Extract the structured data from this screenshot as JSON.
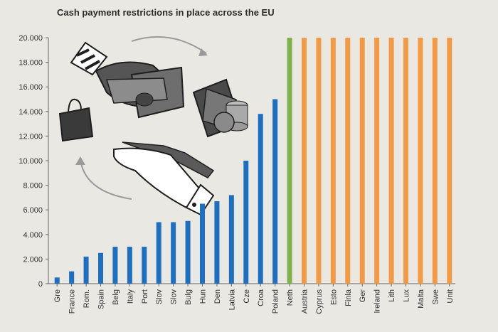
{
  "chart_data": {
    "type": "bar",
    "title": "Cash payment restrictions in place across the EU",
    "xlabel": "",
    "ylabel": "",
    "ylim": [
      0,
      20000
    ],
    "yticks": [
      "0",
      "2.000",
      "4.000",
      "6.000",
      "8.000",
      "10.000",
      "12.000",
      "14.000",
      "16.000",
      "18.000",
      "20.000"
    ],
    "ytick_values": [
      0,
      2000,
      4000,
      6000,
      8000,
      10000,
      12000,
      14000,
      16000,
      18000,
      20000
    ],
    "grid": false,
    "legend": "none",
    "categories": [
      "Gre",
      "France",
      "Rom.",
      "Spain",
      "Belg",
      "Italy",
      "Port",
      "Slov",
      "Slov",
      "Bulg",
      "Hun",
      "Den",
      "Latvia",
      "Cze",
      "Croa",
      "Poland",
      "Neth",
      "Austria",
      "Cyprus",
      "Esto",
      "Finla",
      "Ger",
      "Ireland",
      "Lith",
      "Lux",
      "Malta",
      "Swe",
      "Unit"
    ],
    "values": [
      500,
      1000,
      2200,
      2500,
      3000,
      3000,
      3000,
      5000,
      5000,
      5100,
      6500,
      6700,
      7200,
      10000,
      13800,
      15000,
      20000,
      20000,
      20000,
      20000,
      20000,
      20000,
      20000,
      20000,
      20000,
      20000,
      20000,
      20000
    ],
    "bar_colors": [
      "#1f6fc0",
      "#1f6fc0",
      "#1f6fc0",
      "#1f6fc0",
      "#1f6fc0",
      "#1f6fc0",
      "#1f6fc0",
      "#1f6fc0",
      "#1f6fc0",
      "#1f6fc0",
      "#1f6fc0",
      "#1f6fc0",
      "#1f6fc0",
      "#1f6fc0",
      "#1f6fc0",
      "#1f6fc0",
      "#7fb24a",
      "#f39a45",
      "#f39a45",
      "#f39a45",
      "#f39a45",
      "#f39a45",
      "#f39a45",
      "#f39a45",
      "#f39a45",
      "#f39a45",
      "#f39a45",
      "#f39a45"
    ]
  },
  "illustration": {
    "description_icons": [
      "hand-giving-cash-icon",
      "shopping-bag-icon",
      "cash-and-coins-icon",
      "hand-receiving-icon",
      "cycle-arrow-icon"
    ]
  }
}
